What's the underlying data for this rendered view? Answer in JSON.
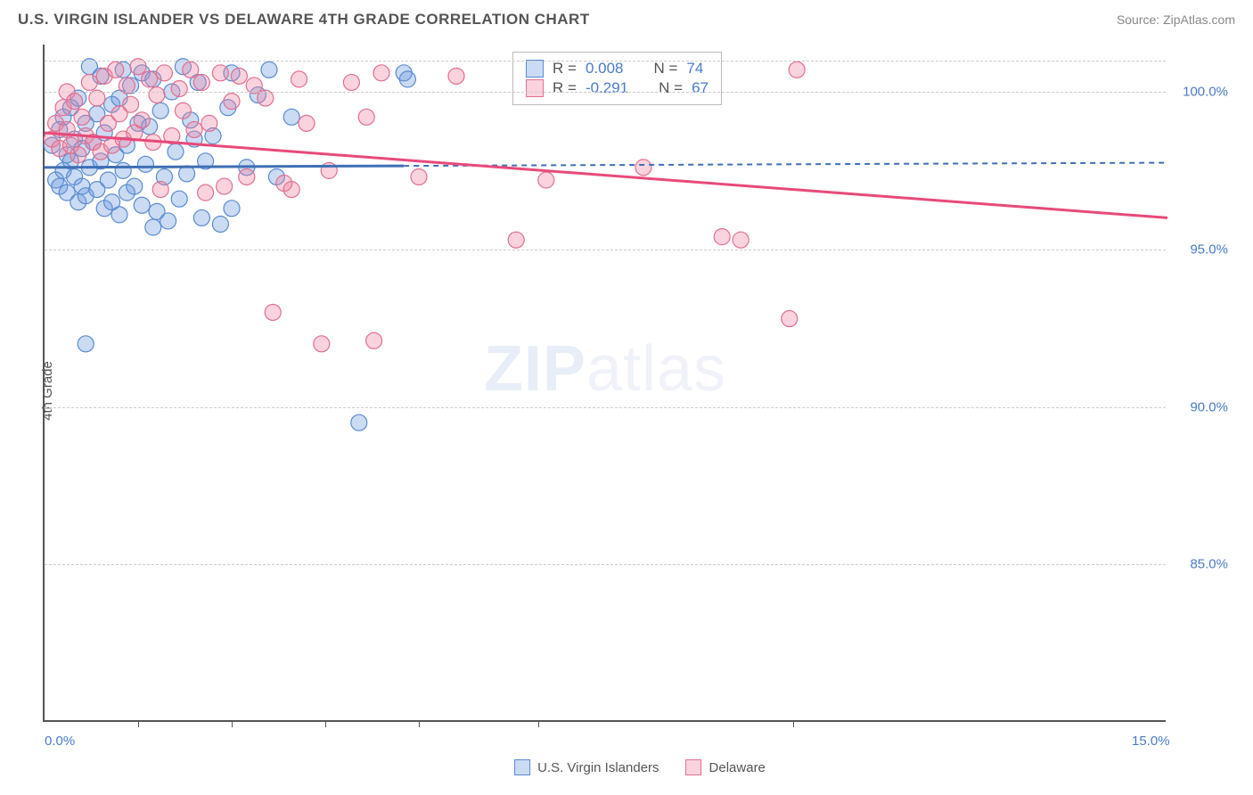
{
  "title": "U.S. VIRGIN ISLANDER VS DELAWARE 4TH GRADE CORRELATION CHART",
  "source": "Source: ZipAtlas.com",
  "watermark_bold": "ZIP",
  "watermark_light": "atlas",
  "y_axis_label": "4th Grade",
  "chart": {
    "type": "scatter",
    "xlim": [
      0.0,
      15.0
    ],
    "ylim": [
      80.0,
      101.5
    ],
    "x_ticks": [
      0.0,
      15.0
    ],
    "x_tick_minor": [
      1.25,
      2.5,
      3.75,
      5.0,
      6.6,
      10.0
    ],
    "y_ticks": [
      85.0,
      90.0,
      95.0,
      100.0
    ],
    "x_tick_labels": [
      "0.0%",
      "15.0%"
    ],
    "y_tick_labels": [
      "85.0%",
      "90.0%",
      "95.0%",
      "100.0%"
    ],
    "grid_color": "#cccccc",
    "background_color": "#ffffff",
    "series": [
      {
        "name": "U.S. Virgin Islanders",
        "color_fill": "rgba(106, 153, 220, 0.35)",
        "color_stroke": "#5a8bd0",
        "marker_radius": 9,
        "r_label": "R = ",
        "r_value": "0.008",
        "n_label": "N = ",
        "n_value": "74",
        "trend": {
          "x1": 0.0,
          "y1": 97.6,
          "x2": 4.8,
          "y2": 97.65,
          "solid": true,
          "color": "#3f6fb5",
          "width": 3
        },
        "trend_dash": {
          "x1": 4.8,
          "y1": 97.65,
          "x2": 15.0,
          "y2": 97.75,
          "color": "#3f6fb5",
          "width": 2
        },
        "points": [
          [
            0.1,
            98.3
          ],
          [
            0.15,
            97.2
          ],
          [
            0.2,
            98.8
          ],
          [
            0.2,
            97.0
          ],
          [
            0.25,
            97.5
          ],
          [
            0.25,
            99.2
          ],
          [
            0.3,
            96.8
          ],
          [
            0.3,
            98.0
          ],
          [
            0.35,
            97.8
          ],
          [
            0.35,
            99.5
          ],
          [
            0.4,
            97.3
          ],
          [
            0.4,
            98.5
          ],
          [
            0.45,
            96.5
          ],
          [
            0.45,
            99.8
          ],
          [
            0.5,
            97.0
          ],
          [
            0.5,
            98.2
          ],
          [
            0.55,
            99.0
          ],
          [
            0.55,
            96.7
          ],
          [
            0.6,
            97.6
          ],
          [
            0.6,
            100.8
          ],
          [
            0.65,
            98.4
          ],
          [
            0.7,
            96.9
          ],
          [
            0.7,
            99.3
          ],
          [
            0.75,
            97.8
          ],
          [
            0.75,
            100.5
          ],
          [
            0.8,
            96.3
          ],
          [
            0.8,
            98.7
          ],
          [
            0.85,
            97.2
          ],
          [
            0.9,
            99.6
          ],
          [
            0.9,
            96.5
          ],
          [
            0.95,
            98.0
          ],
          [
            1.0,
            96.1
          ],
          [
            1.0,
            99.8
          ],
          [
            1.05,
            97.5
          ],
          [
            1.05,
            100.7
          ],
          [
            1.1,
            96.8
          ],
          [
            1.1,
            98.3
          ],
          [
            1.15,
            100.2
          ],
          [
            1.2,
            97.0
          ],
          [
            1.25,
            99.0
          ],
          [
            1.3,
            96.4
          ],
          [
            1.3,
            100.6
          ],
          [
            1.35,
            97.7
          ],
          [
            1.4,
            98.9
          ],
          [
            1.45,
            95.7
          ],
          [
            1.45,
            100.4
          ],
          [
            1.5,
            96.2
          ],
          [
            1.55,
            99.4
          ],
          [
            1.6,
            97.3
          ],
          [
            1.65,
            95.9
          ],
          [
            1.7,
            100.0
          ],
          [
            1.75,
            98.1
          ],
          [
            1.8,
            96.6
          ],
          [
            1.85,
            100.8
          ],
          [
            1.9,
            97.4
          ],
          [
            1.95,
            99.1
          ],
          [
            2.0,
            98.5
          ],
          [
            2.05,
            100.3
          ],
          [
            2.1,
            96.0
          ],
          [
            2.15,
            97.8
          ],
          [
            2.25,
            98.6
          ],
          [
            2.35,
            95.8
          ],
          [
            2.45,
            99.5
          ],
          [
            2.5,
            96.3
          ],
          [
            2.5,
            100.6
          ],
          [
            2.7,
            97.6
          ],
          [
            2.85,
            99.9
          ],
          [
            3.0,
            100.7
          ],
          [
            3.1,
            97.3
          ],
          [
            3.3,
            99.2
          ],
          [
            4.2,
            89.5
          ],
          [
            4.8,
            100.6
          ],
          [
            4.85,
            100.4
          ],
          [
            0.55,
            92.0
          ]
        ]
      },
      {
        "name": "Delaware",
        "color_fill": "rgba(240, 130, 160, 0.35)",
        "color_stroke": "#e07090",
        "marker_radius": 9,
        "r_label": "R = ",
        "r_value": "-0.291",
        "n_label": "N = ",
        "n_value": "67",
        "trend": {
          "x1": 0.0,
          "y1": 98.7,
          "x2": 15.0,
          "y2": 96.0,
          "solid": true,
          "color": "#e84a7a",
          "width": 3
        },
        "points": [
          [
            0.1,
            98.5
          ],
          [
            0.15,
            99.0
          ],
          [
            0.2,
            98.2
          ],
          [
            0.25,
            99.5
          ],
          [
            0.3,
            98.8
          ],
          [
            0.3,
            100.0
          ],
          [
            0.35,
            98.3
          ],
          [
            0.4,
            99.7
          ],
          [
            0.45,
            98.0
          ],
          [
            0.5,
            99.2
          ],
          [
            0.55,
            98.6
          ],
          [
            0.6,
            100.3
          ],
          [
            0.65,
            98.4
          ],
          [
            0.7,
            99.8
          ],
          [
            0.75,
            98.1
          ],
          [
            0.8,
            100.5
          ],
          [
            0.85,
            99.0
          ],
          [
            0.9,
            98.3
          ],
          [
            0.95,
            100.7
          ],
          [
            1.0,
            99.3
          ],
          [
            1.05,
            98.5
          ],
          [
            1.1,
            100.2
          ],
          [
            1.15,
            99.6
          ],
          [
            1.2,
            98.7
          ],
          [
            1.25,
            100.8
          ],
          [
            1.3,
            99.1
          ],
          [
            1.4,
            100.4
          ],
          [
            1.45,
            98.4
          ],
          [
            1.5,
            99.9
          ],
          [
            1.6,
            100.6
          ],
          [
            1.7,
            98.6
          ],
          [
            1.8,
            100.1
          ],
          [
            1.85,
            99.4
          ],
          [
            1.95,
            100.7
          ],
          [
            2.0,
            98.8
          ],
          [
            2.1,
            100.3
          ],
          [
            2.2,
            99.0
          ],
          [
            2.35,
            100.6
          ],
          [
            2.4,
            97.0
          ],
          [
            2.5,
            99.7
          ],
          [
            2.6,
            100.5
          ],
          [
            2.7,
            97.3
          ],
          [
            2.8,
            100.2
          ],
          [
            2.95,
            99.8
          ],
          [
            3.05,
            93.0
          ],
          [
            3.2,
            97.1
          ],
          [
            3.4,
            100.4
          ],
          [
            3.5,
            99.0
          ],
          [
            3.7,
            92.0
          ],
          [
            3.8,
            97.5
          ],
          [
            4.1,
            100.3
          ],
          [
            4.3,
            99.2
          ],
          [
            4.4,
            92.1
          ],
          [
            4.5,
            100.6
          ],
          [
            5.0,
            97.3
          ],
          [
            5.5,
            100.5
          ],
          [
            6.3,
            95.3
          ],
          [
            6.7,
            97.2
          ],
          [
            8.0,
            97.6
          ],
          [
            8.55,
            100.7
          ],
          [
            9.05,
            95.4
          ],
          [
            9.3,
            95.3
          ],
          [
            9.95,
            92.8
          ],
          [
            10.05,
            100.7
          ],
          [
            1.55,
            96.9
          ],
          [
            2.15,
            96.8
          ],
          [
            3.3,
            96.9
          ]
        ]
      }
    ],
    "legend_position": "top-center",
    "bottom_legend": {
      "items": [
        {
          "label": "U.S. Virgin Islanders",
          "fill": "rgba(106,153,220,0.35)",
          "stroke": "#5a8bd0"
        },
        {
          "label": "Delaware",
          "fill": "rgba(240,130,160,0.35)",
          "stroke": "#e07090"
        }
      ]
    },
    "axis_label_color": "#4a7bc8",
    "axis_label_fontsize": 15,
    "title_fontsize": 17,
    "title_color": "#555555"
  }
}
